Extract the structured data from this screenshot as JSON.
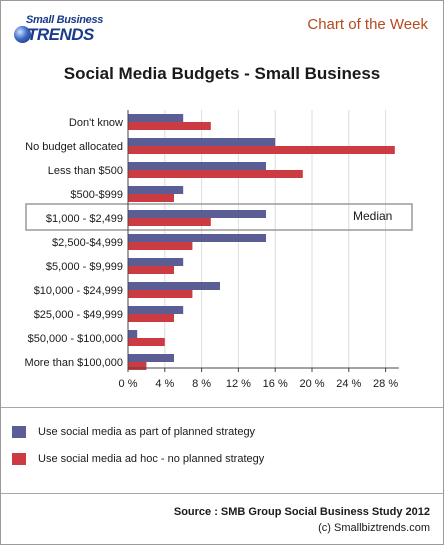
{
  "header": {
    "logo_line1": "Small Business",
    "logo_line2": "TRENDS",
    "chart_of_week": "Chart of the Week"
  },
  "footer": {
    "source": "Source : SMB Group Social Business Study 2012",
    "copyright": "(c) Smallbiztrends.com"
  },
  "colors": {
    "planned": "#5a5e95",
    "adhoc": "#cc3b41",
    "accent": "#b54a1f"
  },
  "chart_data": {
    "type": "bar",
    "orientation": "horizontal",
    "title": "Social Media Budgets - Small Business",
    "categories": [
      "Don't know",
      "No budget allocated",
      "Less than $500",
      "$500-$999",
      "$1,000 - $2,499",
      "$2,500-$4,999",
      "$5,000 - $9,999",
      "$10,000 - $24,999",
      "$25,000 - $49,999",
      "$50,000 - $100,000",
      "More than $100,000"
    ],
    "series": [
      {
        "name": "Use social media as part of planned strategy",
        "values": [
          6,
          16,
          15,
          6,
          15,
          15,
          6,
          10,
          6,
          1,
          5
        ]
      },
      {
        "name": "Use social media ad hoc - no planned strategy",
        "values": [
          9,
          29,
          19,
          5,
          9,
          7,
          5,
          7,
          5,
          4,
          2
        ]
      }
    ],
    "xlim": [
      0,
      29
    ],
    "xticks": [
      0,
      4,
      8,
      12,
      16,
      20,
      24,
      28
    ],
    "xtick_labels": [
      "0 %",
      "4 %",
      "8 %",
      "12 %",
      "16 %",
      "20 %",
      "24 %",
      "28 %"
    ],
    "grid": true,
    "highlight": {
      "category": "$1,000 - $2,499",
      "label": "Median"
    },
    "legend_position": "bottom"
  }
}
